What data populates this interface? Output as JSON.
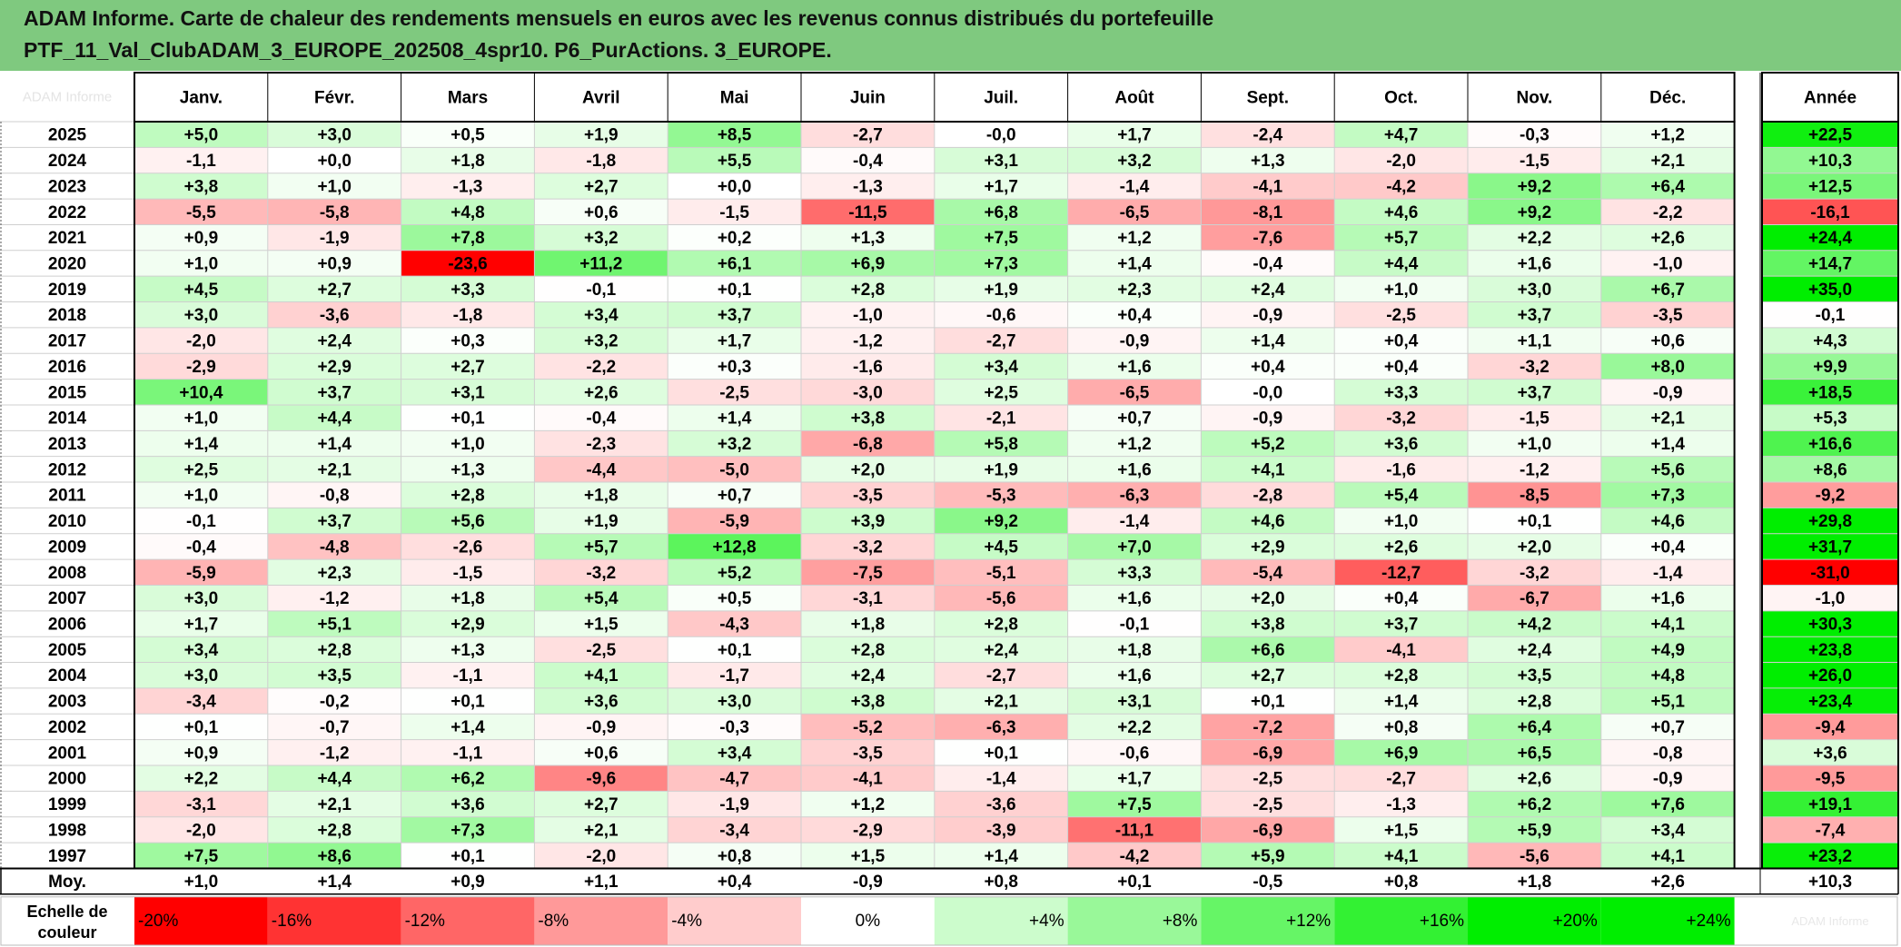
{
  "header": {
    "title_line1": "ADAM Informe. Carte de chaleur des rendements mensuels en euros avec les revenus connus distribués du portefeuille",
    "title_line2": "PTF_11_Val_ClubADAM_3_EUROPE_202508_4spr10. P6_PurActions. 3_EUROPE.",
    "background": "#7fc97f"
  },
  "chart_data": {
    "type": "heatmap",
    "corner_label": "ADAM Informe",
    "columns": [
      "Janv.",
      "Févr.",
      "Mars",
      "Avril",
      "Mai",
      "Juin",
      "Juil.",
      "Août",
      "Sept.",
      "Oct.",
      "Nov.",
      "Déc."
    ],
    "year_header": "Année",
    "rows": [
      {
        "year": "2025",
        "values": [
          "+5,0",
          "+3,0",
          "+0,5",
          "+1,9",
          "+8,5",
          "-2,7",
          "-0,0",
          "+1,7",
          "-2,4",
          "+4,7",
          "-0,3",
          "+1,2"
        ],
        "annual": "+22,5"
      },
      {
        "year": "2024",
        "values": [
          "-1,1",
          "+0,0",
          "+1,8",
          "-1,8",
          "+5,5",
          "-0,4",
          "+3,1",
          "+3,2",
          "+1,3",
          "-2,0",
          "-1,5",
          "+2,1"
        ],
        "annual": "+10,3"
      },
      {
        "year": "2023",
        "values": [
          "+3,8",
          "+1,0",
          "-1,3",
          "+2,7",
          "+0,0",
          "-1,3",
          "+1,7",
          "-1,4",
          "-4,1",
          "-4,2",
          "+9,2",
          "+6,4"
        ],
        "annual": "+12,5"
      },
      {
        "year": "2022",
        "values": [
          "-5,5",
          "-5,8",
          "+4,8",
          "+0,6",
          "-1,5",
          "-11,5",
          "+6,8",
          "-6,5",
          "-8,1",
          "+4,6",
          "+9,2",
          "-2,2"
        ],
        "annual": "-16,1"
      },
      {
        "year": "2021",
        "values": [
          "+0,9",
          "-1,9",
          "+7,8",
          "+3,2",
          "+0,2",
          "+1,3",
          "+7,5",
          "+1,2",
          "-7,6",
          "+5,7",
          "+2,2",
          "+2,6"
        ],
        "annual": "+24,4"
      },
      {
        "year": "2020",
        "values": [
          "+1,0",
          "+0,9",
          "-23,6",
          "+11,2",
          "+6,1",
          "+6,9",
          "+7,3",
          "+1,4",
          "-0,4",
          "+4,4",
          "+1,6",
          "-1,0"
        ],
        "annual": "+14,7"
      },
      {
        "year": "2019",
        "values": [
          "+4,5",
          "+2,7",
          "+3,3",
          "-0,1",
          "+0,1",
          "+2,8",
          "+1,9",
          "+2,3",
          "+2,4",
          "+1,0",
          "+3,0",
          "+6,7"
        ],
        "annual": "+35,0"
      },
      {
        "year": "2018",
        "values": [
          "+3,0",
          "-3,6",
          "-1,8",
          "+3,4",
          "+3,7",
          "-1,0",
          "-0,6",
          "+0,4",
          "-0,9",
          "-2,5",
          "+3,7",
          "-3,5"
        ],
        "annual": "-0,1"
      },
      {
        "year": "2017",
        "values": [
          "-2,0",
          "+2,4",
          "+0,3",
          "+3,2",
          "+1,7",
          "-1,2",
          "-2,7",
          "-0,9",
          "+1,4",
          "+0,4",
          "+1,1",
          "+0,6"
        ],
        "annual": "+4,3"
      },
      {
        "year": "2016",
        "values": [
          "-2,9",
          "+2,9",
          "+2,7",
          "-2,2",
          "+0,3",
          "-1,6",
          "+3,4",
          "+1,6",
          "+0,4",
          "+0,4",
          "-3,2",
          "+8,0"
        ],
        "annual": "+9,9"
      },
      {
        "year": "2015",
        "values": [
          "+10,4",
          "+3,7",
          "+3,1",
          "+2,6",
          "-2,5",
          "-3,0",
          "+2,5",
          "-6,5",
          "-0,0",
          "+3,3",
          "+3,7",
          "-0,9"
        ],
        "annual": "+18,5"
      },
      {
        "year": "2014",
        "values": [
          "+1,0",
          "+4,4",
          "+0,1",
          "-0,4",
          "+1,4",
          "+3,8",
          "-2,1",
          "+0,7",
          "-0,9",
          "-3,2",
          "-1,5",
          "+2,1"
        ],
        "annual": "+5,3"
      },
      {
        "year": "2013",
        "values": [
          "+1,4",
          "+1,4",
          "+1,0",
          "-2,3",
          "+3,2",
          "-6,8",
          "+5,8",
          "+1,2",
          "+5,2",
          "+3,6",
          "+1,0",
          "+1,4"
        ],
        "annual": "+16,6"
      },
      {
        "year": "2012",
        "values": [
          "+2,5",
          "+2,1",
          "+1,3",
          "-4,4",
          "-5,0",
          "+2,0",
          "+1,9",
          "+1,6",
          "+4,1",
          "-1,6",
          "-1,2",
          "+5,6"
        ],
        "annual": "+8,6"
      },
      {
        "year": "2011",
        "values": [
          "+1,0",
          "-0,8",
          "+2,8",
          "+1,8",
          "+0,7",
          "-3,5",
          "-5,3",
          "-6,3",
          "-2,8",
          "+5,4",
          "-8,5",
          "+7,3"
        ],
        "annual": "-9,2"
      },
      {
        "year": "2010",
        "values": [
          "-0,1",
          "+3,7",
          "+5,6",
          "+1,9",
          "-5,9",
          "+3,9",
          "+9,2",
          "-1,4",
          "+4,6",
          "+1,0",
          "+0,1",
          "+4,6"
        ],
        "annual": "+29,8"
      },
      {
        "year": "2009",
        "values": [
          "-0,4",
          "-4,8",
          "-2,6",
          "+5,7",
          "+12,8",
          "-3,2",
          "+4,5",
          "+7,0",
          "+2,9",
          "+2,6",
          "+2,0",
          "+0,4"
        ],
        "annual": "+31,7"
      },
      {
        "year": "2008",
        "values": [
          "-5,9",
          "+2,3",
          "-1,5",
          "-3,2",
          "+5,2",
          "-7,5",
          "-5,1",
          "+3,3",
          "-5,4",
          "-12,7",
          "-3,2",
          "-1,4"
        ],
        "annual": "-31,0"
      },
      {
        "year": "2007",
        "values": [
          "+3,0",
          "-1,2",
          "+1,8",
          "+5,4",
          "+0,5",
          "-3,1",
          "-5,6",
          "+1,6",
          "+2,0",
          "+0,4",
          "-6,7",
          "+1,6"
        ],
        "annual": "-1,0"
      },
      {
        "year": "2006",
        "values": [
          "+1,7",
          "+5,1",
          "+2,9",
          "+1,5",
          "-4,3",
          "+1,8",
          "+2,8",
          "-0,1",
          "+3,8",
          "+3,7",
          "+4,2",
          "+4,1"
        ],
        "annual": "+30,3"
      },
      {
        "year": "2005",
        "values": [
          "+3,4",
          "+2,8",
          "+1,3",
          "-2,5",
          "+0,1",
          "+2,8",
          "+2,4",
          "+1,8",
          "+6,6",
          "-4,1",
          "+2,4",
          "+4,9"
        ],
        "annual": "+23,8"
      },
      {
        "year": "2004",
        "values": [
          "+3,0",
          "+3,5",
          "-1,1",
          "+4,1",
          "-1,7",
          "+2,4",
          "-2,7",
          "+1,6",
          "+2,7",
          "+2,8",
          "+3,5",
          "+4,8"
        ],
        "annual": "+26,0"
      },
      {
        "year": "2003",
        "values": [
          "-3,4",
          "-0,2",
          "+0,1",
          "+3,6",
          "+3,0",
          "+3,8",
          "+2,1",
          "+3,1",
          "+0,1",
          "+1,4",
          "+2,8",
          "+5,1"
        ],
        "annual": "+23,4"
      },
      {
        "year": "2002",
        "values": [
          "+0,1",
          "-0,7",
          "+1,4",
          "-0,9",
          "-0,3",
          "-5,2",
          "-6,3",
          "+2,2",
          "-7,2",
          "+0,8",
          "+6,4",
          "+0,7"
        ],
        "annual": "-9,4"
      },
      {
        "year": "2001",
        "values": [
          "+0,9",
          "-1,2",
          "-1,1",
          "+0,6",
          "+3,4",
          "-3,5",
          "+0,1",
          "-0,6",
          "-6,9",
          "+6,9",
          "+6,5",
          "-0,8"
        ],
        "annual": "+3,6"
      },
      {
        "year": "2000",
        "values": [
          "+2,2",
          "+4,4",
          "+6,2",
          "-9,6",
          "-4,7",
          "-4,1",
          "-1,4",
          "+1,7",
          "-2,5",
          "-2,7",
          "+2,6",
          "-0,9"
        ],
        "annual": "-9,5"
      },
      {
        "year": "1999",
        "values": [
          "-3,1",
          "+2,1",
          "+3,6",
          "+2,7",
          "-1,9",
          "+1,2",
          "-3,6",
          "+7,5",
          "-2,5",
          "-1,3",
          "+6,2",
          "+7,6"
        ],
        "annual": "+19,1"
      },
      {
        "year": "1998",
        "values": [
          "-2,0",
          "+2,8",
          "+7,3",
          "+2,1",
          "-3,4",
          "-2,9",
          "-3,9",
          "-11,1",
          "-6,9",
          "+1,5",
          "+5,9",
          "+3,4"
        ],
        "annual": "-7,4"
      },
      {
        "year": "1997",
        "values": [
          "+7,5",
          "+8,6",
          "+0,1",
          "-2,0",
          "+0,8",
          "+1,5",
          "+1,4",
          "-4,2",
          "+5,9",
          "+4,1",
          "-5,6",
          "+4,1"
        ],
        "annual": "+23,2"
      }
    ],
    "average": {
      "label": "Moy.",
      "values": [
        "+1,0",
        "+1,4",
        "+0,9",
        "+1,1",
        "+0,4",
        "-0,9",
        "+0,8",
        "+0,1",
        "-0,5",
        "+0,8",
        "+1,8",
        "+2,6"
      ],
      "annual": "+10,3"
    },
    "scale": {
      "label_line1": "Echelle de",
      "label_line2": "couleur",
      "stops": [
        "-20%",
        "-16%",
        "-12%",
        "-8%",
        "-4%",
        "0%",
        "+4%",
        "+8%",
        "+12%",
        "+16%",
        "+20%",
        "+24%"
      ],
      "stop_values": [
        -20,
        -16,
        -12,
        -8,
        -4,
        0,
        4,
        8,
        12,
        16,
        20,
        24
      ],
      "trailing_note": "ADAM Informe"
    },
    "color_rules": {
      "monthly_saturation_pct": 20,
      "annual_saturation_pct": 24,
      "negative_color": "#ff0000",
      "positive_color": "#00ee00",
      "neutral_color": "#ffffff"
    }
  }
}
